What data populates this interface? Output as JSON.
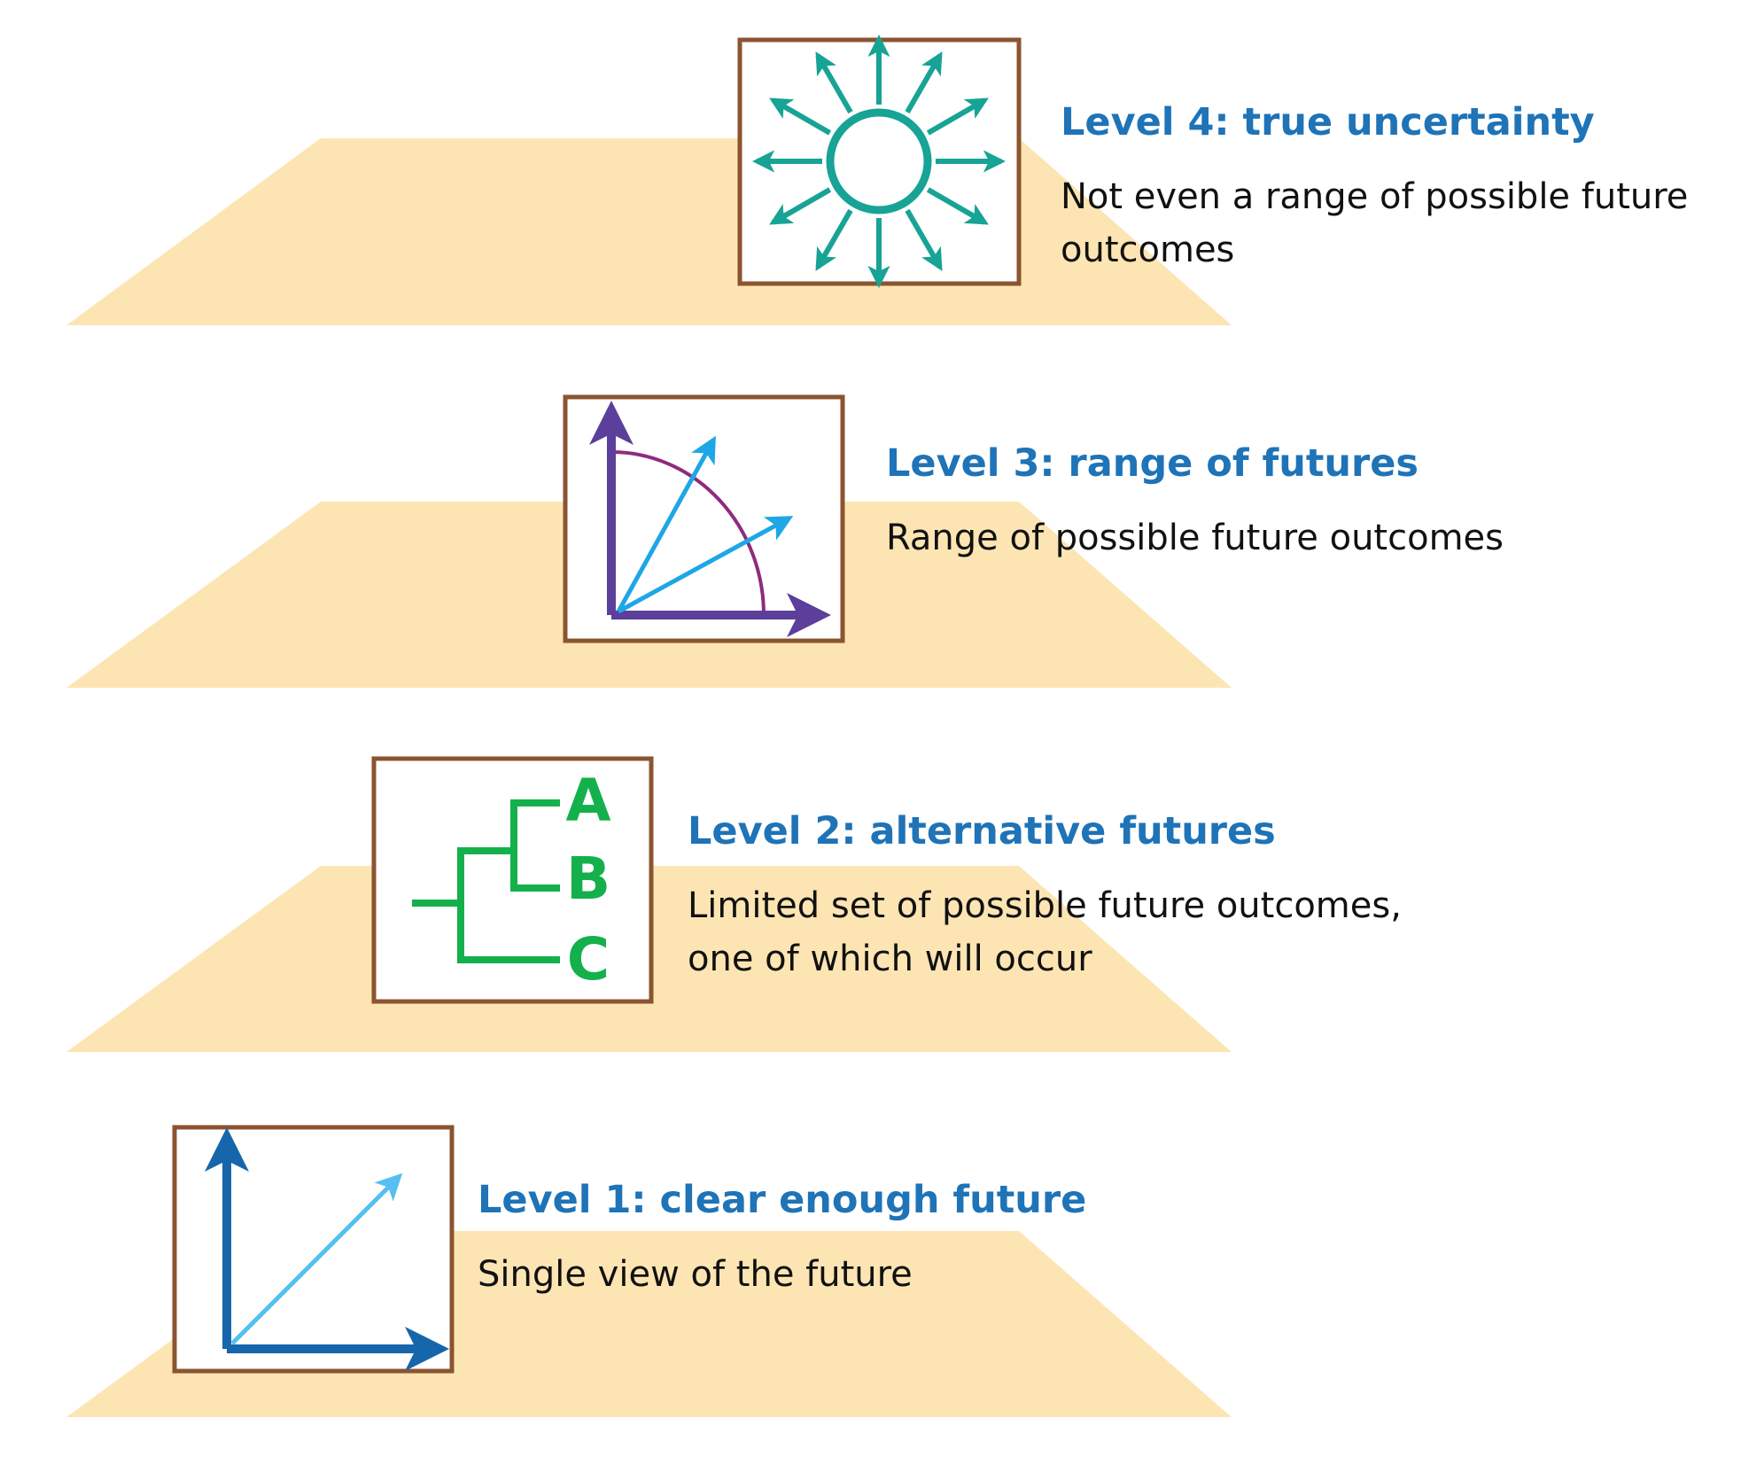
{
  "colors": {
    "platform": "#fde5b3",
    "box_border": "#8b5430",
    "heading": "#1f73b7",
    "teal": "#17a396",
    "purple": "#5b3f9a",
    "arc": "#8e2c7e",
    "sky": "#1ea6e6",
    "green": "#14b04c",
    "dark_blue": "#1566aa",
    "light_blue": "#55bff0"
  },
  "levels": [
    {
      "icon": "radiating-arrows-icon",
      "title": "Level 4: true uncertainty",
      "description": "Not even a range of possible future outcomes"
    },
    {
      "icon": "range-of-futures-icon",
      "title": "Level 3: range of futures",
      "description": "Range of possible future outcomes"
    },
    {
      "icon": "branching-futures-icon",
      "title": "Level 2: alternative futures",
      "description": "Limited set of possible future outcomes, one of which will occur"
    },
    {
      "icon": "single-direction-icon",
      "title": "Level 1: clear enough future",
      "description": "Single view of the future"
    }
  ],
  "branch_labels": [
    "A",
    "B",
    "C"
  ]
}
